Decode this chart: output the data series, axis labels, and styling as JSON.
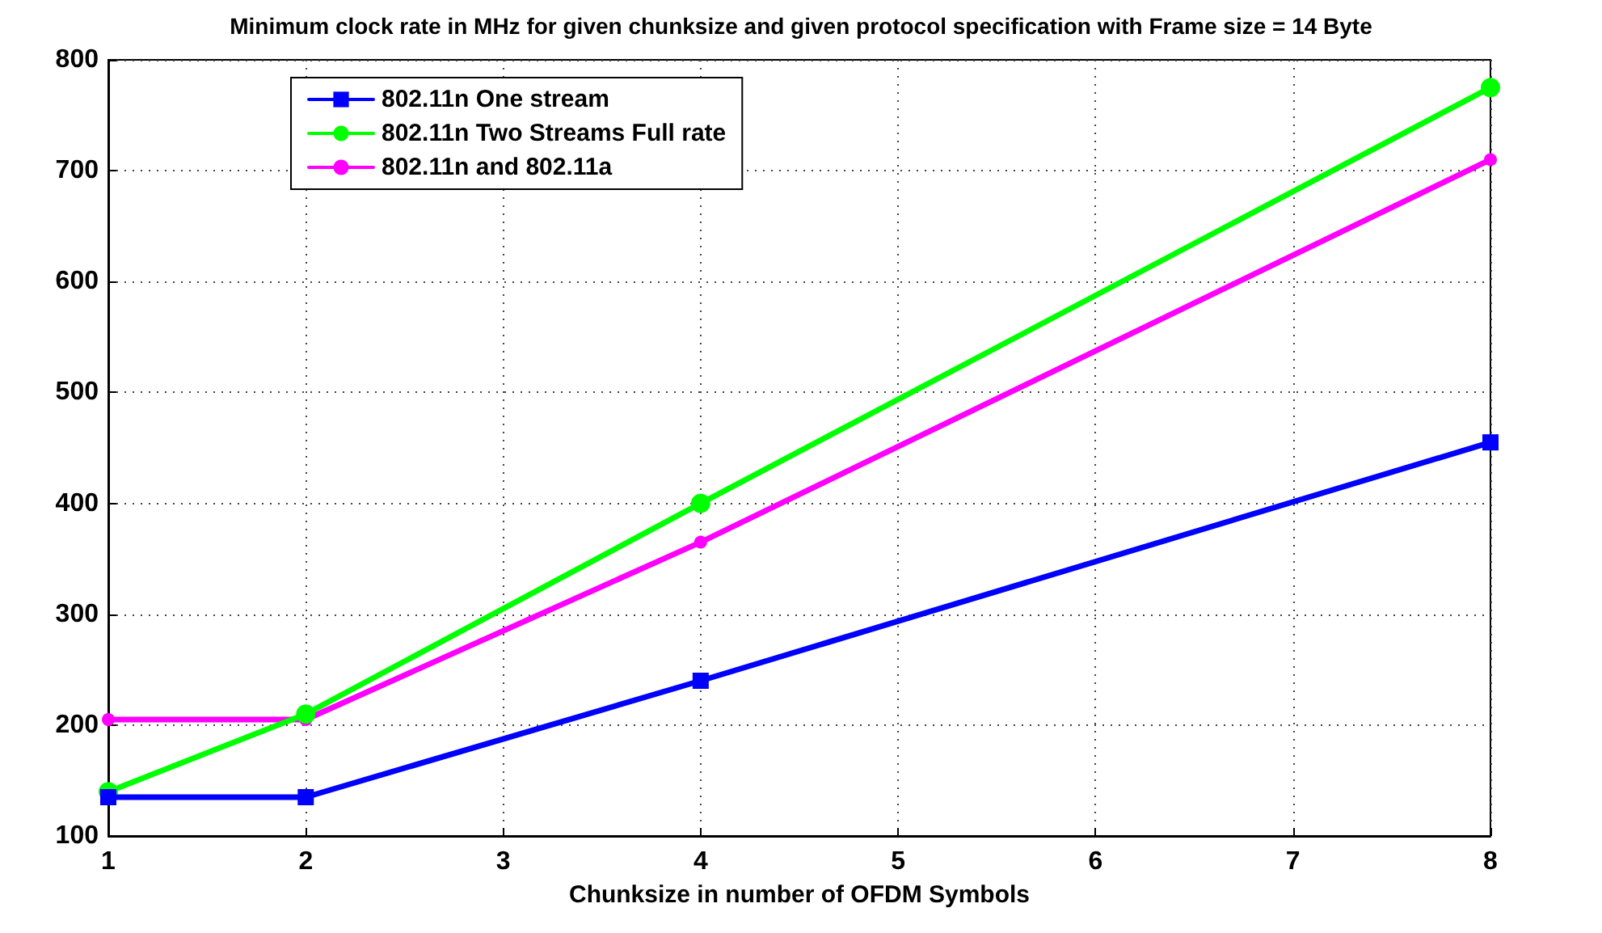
{
  "chart_data": {
    "type": "line",
    "title": "Minimum clock rate in MHz for given chunksize and given protocol specification with Frame size = 14 Byte",
    "xlabel": "Chunksize in number of OFDM Symbols",
    "x": [
      1,
      2,
      4,
      8
    ],
    "series": [
      {
        "name": "802.11n One stream",
        "color": "#0000ff",
        "marker": "square",
        "values": [
          135,
          135,
          240,
          455
        ]
      },
      {
        "name": "802.11n Two Streams Full rate",
        "color": "#00ff00",
        "marker": "circle",
        "values": [
          140,
          210,
          400,
          775
        ]
      },
      {
        "name": "802.11n and 802.11a",
        "color": "#ff00ff",
        "marker": "circle",
        "values": [
          205,
          205,
          365,
          710
        ]
      }
    ],
    "xlim": [
      1,
      8
    ],
    "xticks": [
      1,
      2,
      3,
      4,
      5,
      6,
      7,
      8
    ],
    "ylim": [
      100,
      800
    ],
    "yticks": [
      100,
      200,
      300,
      400,
      500,
      600,
      700,
      800
    ],
    "grid": true,
    "legend": "top left",
    "line_style": "solid"
  }
}
